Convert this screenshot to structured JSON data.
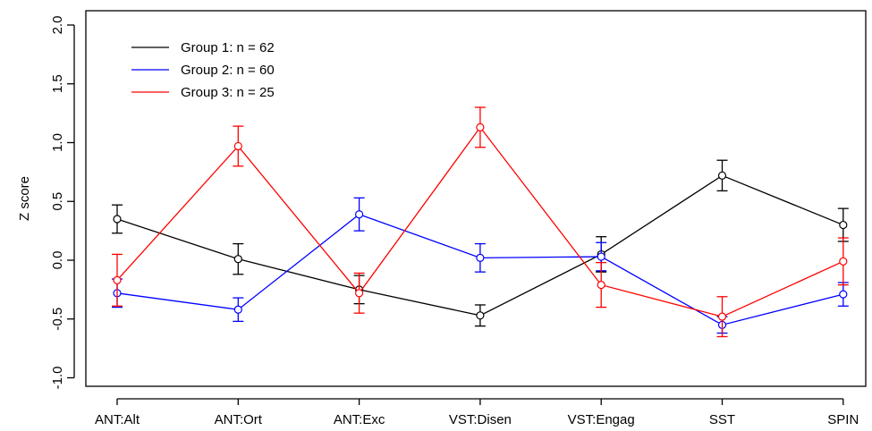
{
  "chart_data": {
    "type": "line",
    "title": "",
    "xlabel": "",
    "ylabel": "Z score",
    "categories": [
      "ANT:Alt",
      "ANT:Ort",
      "ANT:Exc",
      "VST:Disen",
      "VST:Engag",
      "SST",
      "SPIN"
    ],
    "ylim": [
      -1.0,
      2.0
    ],
    "yticks": [
      -1.0,
      -0.5,
      0.0,
      0.5,
      1.0,
      1.5,
      2.0
    ],
    "ytick_labels": [
      "-1.0",
      "-0.5",
      "0.0",
      "0.5",
      "1.0",
      "1.5",
      "2.0"
    ],
    "grid": false,
    "legend_position": "top-left",
    "error_bars": true,
    "series": [
      {
        "name": "Group 1: n = 62",
        "color": "#000000",
        "values": [
          0.35,
          0.01,
          -0.25,
          -0.47,
          0.05,
          0.72,
          0.3
        ],
        "err": [
          0.12,
          0.13,
          0.12,
          0.09,
          0.15,
          0.13,
          0.14
        ]
      },
      {
        "name": "Group 2: n = 60",
        "color": "#0000ff",
        "values": [
          -0.28,
          -0.42,
          0.39,
          0.02,
          0.03,
          -0.55,
          -0.29
        ],
        "err": [
          0.12,
          0.1,
          0.14,
          0.12,
          0.12,
          0.07,
          0.1
        ]
      },
      {
        "name": "Group 3: n = 25",
        "color": "#ff0000",
        "values": [
          -0.17,
          0.97,
          -0.28,
          1.13,
          -0.21,
          -0.48,
          -0.01
        ],
        "err": [
          0.22,
          0.17,
          0.17,
          0.17,
          0.19,
          0.17,
          0.2
        ]
      }
    ]
  }
}
